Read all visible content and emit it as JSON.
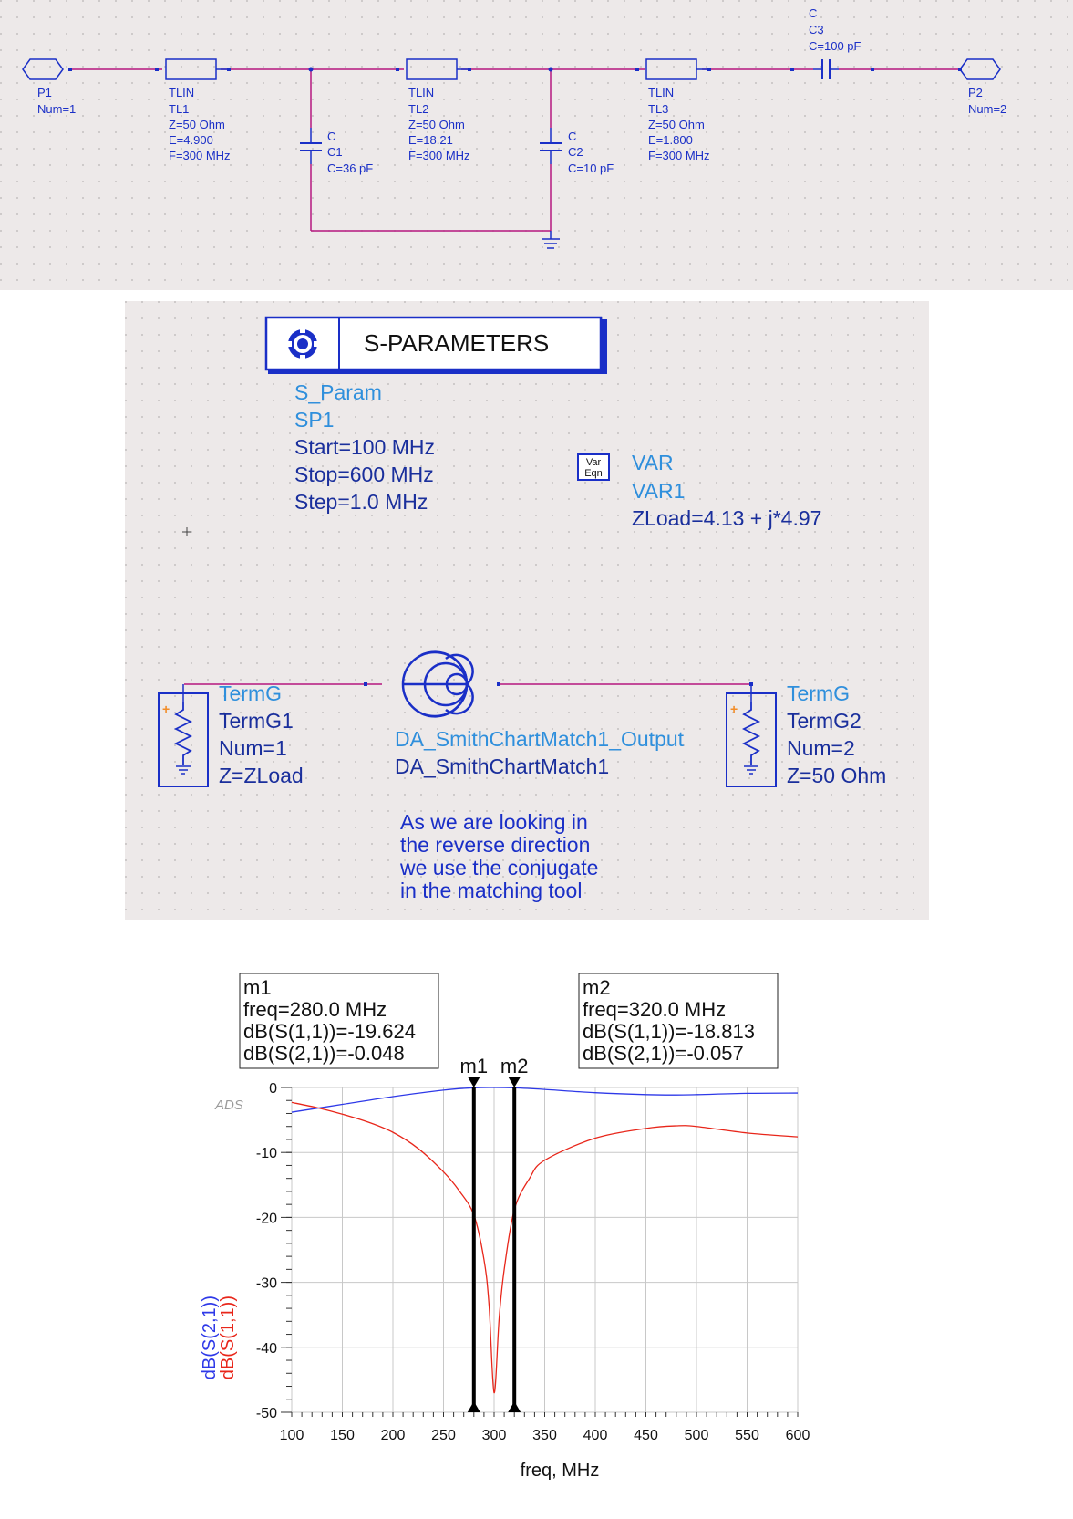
{
  "colors": {
    "panel_bg": "#ede9e9",
    "wire": "#b5177f",
    "component": "#1a2fc7",
    "comp_text": "#1a2fc7",
    "param_text": "#2f8fdc",
    "s11": "#e8261a",
    "s21": "#2e39e8",
    "grid": "#c8c8c8"
  },
  "top_schematic": {
    "p1": {
      "name": "P1",
      "num": "Num=1"
    },
    "p2": {
      "name": "P2",
      "num": "Num=2"
    },
    "tl1": {
      "type": "TLIN",
      "name": "TL1",
      "z": "Z=50 Ohm",
      "e": "E=4.900",
      "f": "F=300 MHz"
    },
    "tl2": {
      "type": "TLIN",
      "name": "TL2",
      "z": "Z=50 Ohm",
      "e": "E=18.21",
      "f": "F=300 MHz"
    },
    "tl3": {
      "type": "TLIN",
      "name": "TL3",
      "z": "Z=50 Ohm",
      "e": "E=1.800",
      "f": "F=300 MHz"
    },
    "c1": {
      "type": "C",
      "name": "C1",
      "value": "C=36 pF"
    },
    "c2": {
      "type": "C",
      "name": "C2",
      "value": "C=10 pF"
    },
    "c3": {
      "type": "C",
      "name": "C3",
      "value": "C=100 pF"
    }
  },
  "sim_schematic": {
    "sparam_title": "S-PARAMETERS",
    "sparam_type": "S_Param",
    "sparam_name": "SP1",
    "start": "Start=100 MHz",
    "stop": "Stop=600 MHz",
    "step": "Step=1.0 MHz",
    "var_icon_top": "Var",
    "var_icon_bottom": "Eqn",
    "var_type": "VAR",
    "var_name": "VAR1",
    "zload": "ZLoad=4.13 + j*4.97",
    "termg1": {
      "type": "TermG",
      "name": "TermG1",
      "num": "Num=1",
      "z": "Z=ZLoad"
    },
    "termg2": {
      "type": "TermG",
      "name": "TermG2",
      "num": "Num=2",
      "z": "Z=50 Ohm"
    },
    "plus_sign": "+",
    "smith_output": "DA_SmithChartMatch1_Output",
    "smith_name": "DA_SmithChartMatch1",
    "note": [
      "As we are looking in",
      "the reverse direction",
      "we use the conjugate",
      "in the matching tool"
    ]
  },
  "plot": {
    "ads_label": "ADS",
    "m1_box": [
      "m1",
      "freq=280.0 MHz",
      "dB(S(1,1))=-19.624",
      "dB(S(2,1))=-0.048"
    ],
    "m2_box": [
      "m2",
      "freq=320.0 MHz",
      "dB(S(1,1))=-18.813",
      "dB(S(2,1))=-0.057"
    ],
    "m1_label": "m1",
    "m2_label": "m2"
  },
  "chart_data": {
    "type": "line",
    "xlabel": "freq, MHz",
    "ylabel_series": [
      "dB(S(2,1))",
      "dB(S(1,1))"
    ],
    "xlim": [
      100,
      600
    ],
    "ylim": [
      -50,
      0
    ],
    "xticks": [
      100,
      150,
      200,
      250,
      300,
      350,
      400,
      450,
      500,
      550,
      600
    ],
    "yticks": [
      0,
      -10,
      -20,
      -30,
      -40,
      -50
    ],
    "grid": true,
    "series": [
      {
        "name": "dB(S(2,1))",
        "color": "#2e39e8",
        "x": [
          100,
          150,
          200,
          250,
          280,
          300,
          320,
          350,
          400,
          450,
          480,
          500,
          550,
          600
        ],
        "y": [
          -3.8,
          -2.6,
          -1.4,
          -0.4,
          -0.048,
          0,
          -0.057,
          -0.3,
          -0.8,
          -1.1,
          -1.15,
          -1.1,
          -0.9,
          -0.85
        ]
      },
      {
        "name": "dB(S(1,1))",
        "color": "#e8261a",
        "x": [
          100,
          125,
          150,
          175,
          200,
          225,
          250,
          265,
          280,
          290,
          295,
          300,
          305,
          310,
          320,
          335,
          350,
          400,
          450,
          480,
          500,
          550,
          600
        ],
        "y": [
          -2.3,
          -3.1,
          -4.1,
          -5.3,
          -6.9,
          -9.4,
          -13.0,
          -15.8,
          -19.624,
          -26.5,
          -33.5,
          -47.0,
          -35.5,
          -28.0,
          -18.813,
          -14.0,
          -11.2,
          -7.8,
          -6.3,
          -5.9,
          -6.0,
          -7.0,
          -7.6
        ]
      }
    ],
    "markers": [
      {
        "name": "m1",
        "x": 280
      },
      {
        "name": "m2",
        "x": 320
      }
    ]
  }
}
